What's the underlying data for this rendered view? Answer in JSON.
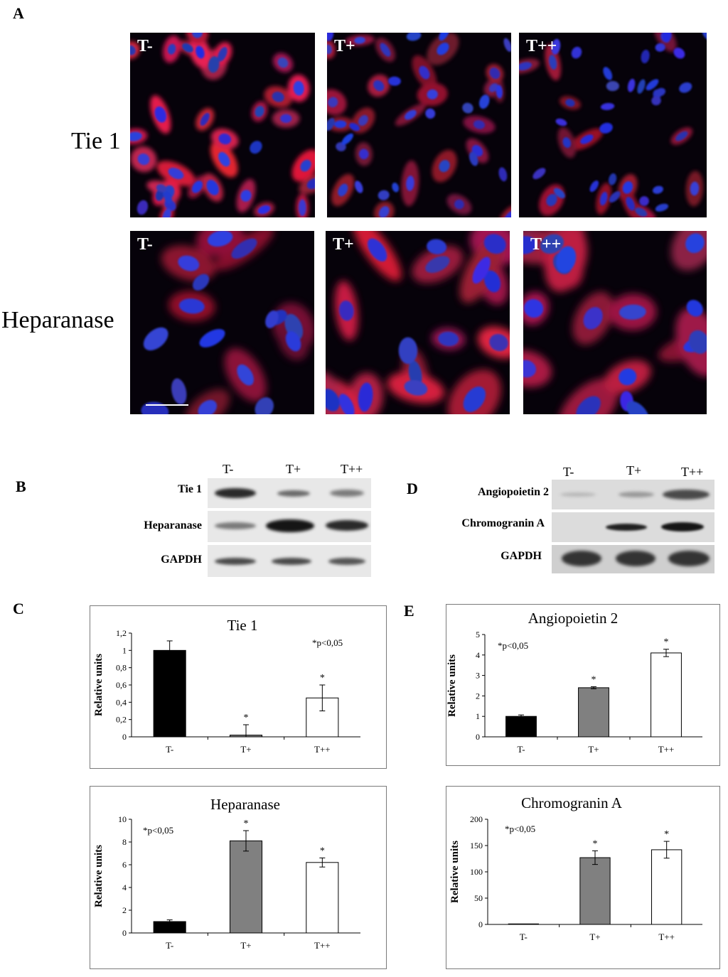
{
  "panel_A": {
    "letter": "A",
    "rows": [
      {
        "label": "Tie 1",
        "conditions": [
          "T-",
          "T+",
          "T++"
        ]
      },
      {
        "label": "Heparanase",
        "conditions": [
          "T-",
          "T+",
          "T++"
        ]
      }
    ]
  },
  "panel_B": {
    "letter": "B",
    "lanes": [
      "T-",
      "T+",
      "T++"
    ],
    "proteins": [
      "Tie 1",
      "Heparanase",
      "GAPDH"
    ]
  },
  "panel_D": {
    "letter": "D",
    "lanes": [
      "T-",
      "T+",
      "T++"
    ],
    "proteins": [
      "Angiopoietin 2",
      "Chromogranin A",
      "GAPDH"
    ]
  },
  "panel_C": {
    "letter": "C"
  },
  "panel_E": {
    "letter": "E"
  },
  "colors": {
    "black_bar": "#000000",
    "grey_bar": "#808080",
    "white_bar": "#ffffff",
    "red_stain": "#e0203a",
    "blue_stain": "#2a3ad0"
  },
  "chart_data": [
    {
      "type": "bar",
      "title": "Tie 1",
      "ylabel": "Relative units",
      "categories": [
        "T-",
        "T+",
        "T++"
      ],
      "values": [
        1.0,
        0.02,
        0.45
      ],
      "errors": [
        0.11,
        0.12,
        0.15
      ],
      "significance": [
        "",
        "*",
        "*"
      ],
      "note": "*p<0,05",
      "ylim": [
        0,
        1.2
      ],
      "yticks": [
        "0",
        "0,2",
        "0,4",
        "0,6",
        "0,8",
        "1",
        "1,2"
      ],
      "bar_colors": [
        "#000000",
        "#808080",
        "#ffffff"
      ]
    },
    {
      "type": "bar",
      "title": "Heparanase",
      "ylabel": "Relative units",
      "categories": [
        "T-",
        "T+",
        "T++"
      ],
      "values": [
        1.0,
        8.1,
        6.2
      ],
      "errors": [
        0.15,
        0.9,
        0.4
      ],
      "significance": [
        "",
        "*",
        "*"
      ],
      "note": "*p<0,05",
      "ylim": [
        0,
        10
      ],
      "yticks": [
        "0",
        "2",
        "4",
        "6",
        "8",
        "10"
      ],
      "bar_colors": [
        "#000000",
        "#808080",
        "#ffffff"
      ]
    },
    {
      "type": "bar",
      "title": "Angiopoietin 2",
      "ylabel": "Relative units",
      "categories": [
        "T-",
        "T+",
        "T++"
      ],
      "values": [
        1.0,
        2.4,
        4.1
      ],
      "errors": [
        0.07,
        0.05,
        0.18
      ],
      "significance": [
        "",
        "*",
        "*"
      ],
      "note": "*p<0,05",
      "ylim": [
        0,
        5
      ],
      "yticks": [
        "0",
        "1",
        "2",
        "3",
        "4",
        "5"
      ],
      "bar_colors": [
        "#000000",
        "#808080",
        "#ffffff"
      ]
    },
    {
      "type": "bar",
      "title": "Chromogranin A",
      "ylabel": "Relative units",
      "categories": [
        "T-",
        "T+",
        "T++"
      ],
      "values": [
        1,
        127,
        142
      ],
      "errors": [
        0,
        13,
        16
      ],
      "significance": [
        "",
        "*",
        "*"
      ],
      "note": "*p<0,05",
      "ylim": [
        0,
        200
      ],
      "yticks": [
        "0",
        "50",
        "100",
        "150",
        "200"
      ],
      "bar_colors": [
        "#000000",
        "#808080",
        "#ffffff"
      ]
    }
  ]
}
